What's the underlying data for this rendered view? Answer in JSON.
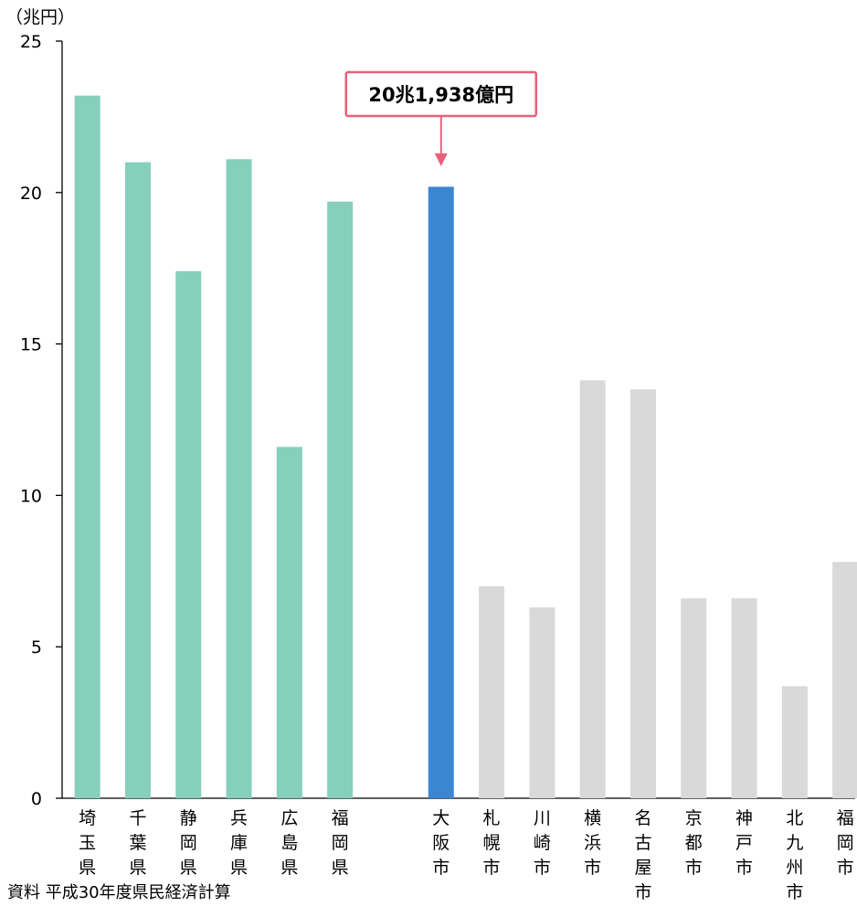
{
  "chart_data": {
    "type": "bar",
    "unit_label": "（兆円）",
    "categories": [
      "埼玉県",
      "千葉県",
      "静岡県",
      "兵庫県",
      "広島県",
      "福岡県",
      "",
      "大阪市",
      "札幌市",
      "川崎市",
      "横浜市",
      "名古屋市",
      "京都市",
      "神戸市",
      "北九州市",
      "福岡市"
    ],
    "values": [
      23.2,
      21.0,
      17.4,
      21.1,
      11.6,
      19.7,
      null,
      20.19,
      7.0,
      6.3,
      13.8,
      13.5,
      6.6,
      6.6,
      3.7,
      7.8
    ],
    "ylim": [
      0,
      25
    ],
    "yticks": [
      0,
      5,
      10,
      15,
      20,
      25
    ],
    "colors": {
      "prefecture": "#85cfbb",
      "highlight": "#3b86d1",
      "city": "#d9d9d9",
      "callout_border": "#e8607c",
      "axis": "#000000"
    },
    "highlight_index": 7,
    "annotation": {
      "text": "20兆1,938億円",
      "target": "大阪市"
    },
    "source": "資料  平成30年度県民経済計算"
  }
}
